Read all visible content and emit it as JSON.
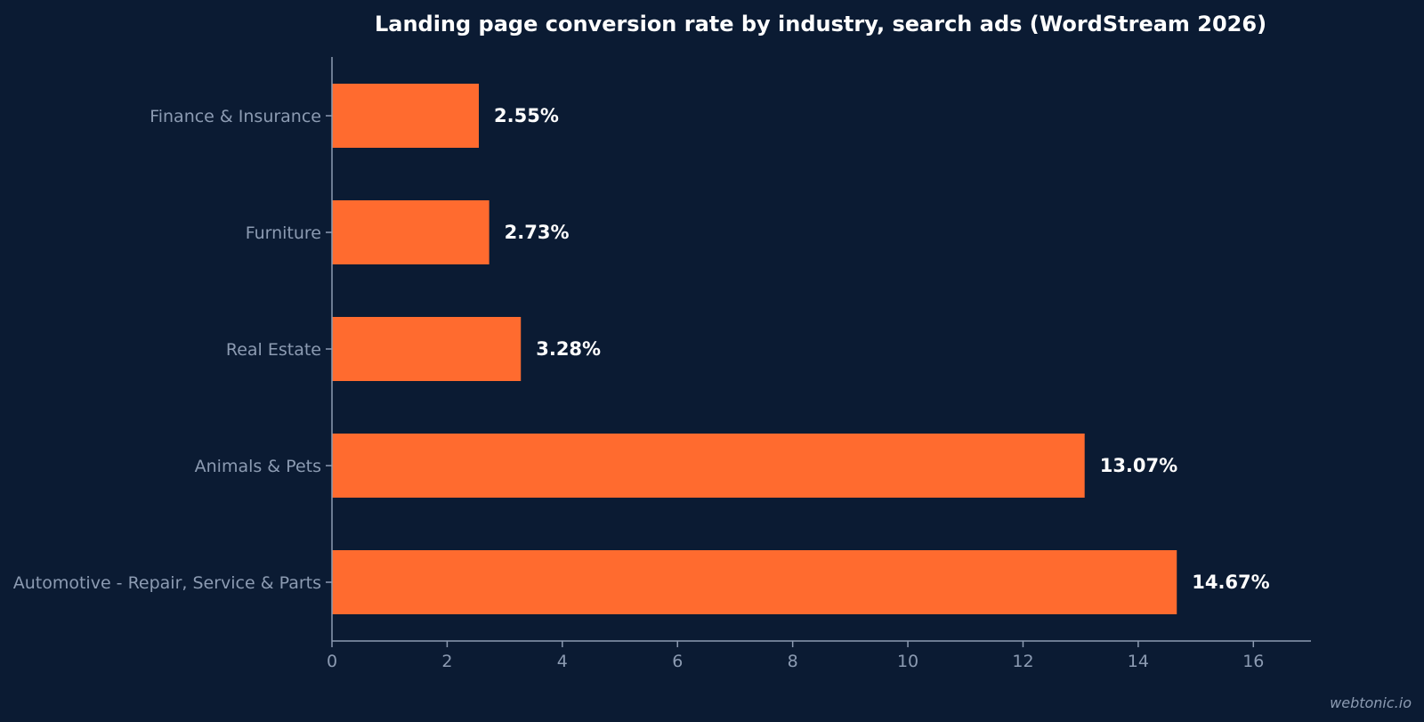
{
  "colors": {
    "background": "#0b1b33",
    "bar": "#ff6b2f",
    "axis": "#8c9bb2",
    "text": "#ffffff"
  },
  "watermark": "webtonic.io",
  "chart_data": {
    "type": "bar",
    "orientation": "horizontal",
    "title": "Landing page conversion rate by industry, search ads (WordStream 2026)",
    "xlabel": "",
    "ylabel": "",
    "categories": [
      "Finance & Insurance",
      "Furniture",
      "Real Estate",
      "Animals & Pets",
      "Automotive - Repair, Service & Parts"
    ],
    "values": [
      2.55,
      2.73,
      3.28,
      13.07,
      14.67
    ],
    "value_labels": [
      "2.55%",
      "2.73%",
      "3.28%",
      "13.07%",
      "14.67%"
    ],
    "xlim": [
      0,
      17
    ],
    "xticks": [
      0,
      2,
      4,
      6,
      8,
      10,
      12,
      14,
      16
    ],
    "grid": false,
    "legend": "none"
  }
}
